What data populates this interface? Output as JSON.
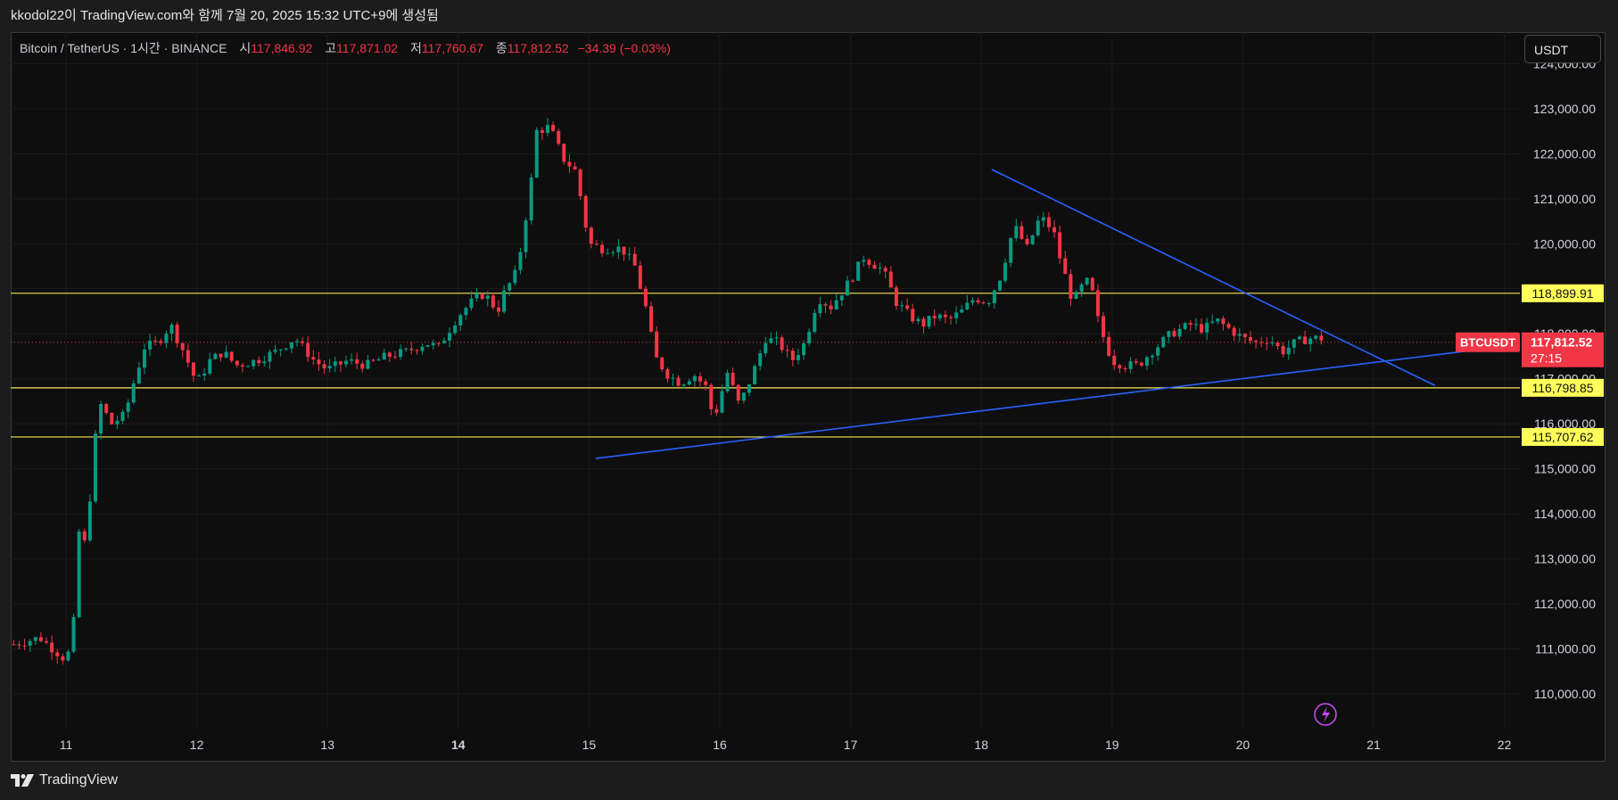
{
  "header": {
    "snapshot_text": "kkodol22이 TradingView.com와 함께 7월 20, 2025 15:32 UTC+9에 생성됨"
  },
  "symbol": {
    "name": "Bitcoin / TetherUS · 1시간 · BINANCE",
    "open_label": "시",
    "open_value": "117,846.92",
    "high_label": "고",
    "high_value": "117,871.02",
    "low_label": "저",
    "low_value": "117,760.67",
    "close_label": "종",
    "close_value": "117,812.52",
    "change": "−34.39 (−0.03%)"
  },
  "currency": "USDT",
  "footer": {
    "brand": "TradingView"
  },
  "colors": {
    "up": "#089981",
    "down": "#f23645",
    "trendline": "#2962ff",
    "level_line": "#f5e65a",
    "level_tag": "#ffff5a",
    "background": "#0e0e0e"
  },
  "icons": {
    "flash": "lightning-icon",
    "logo": "tradingview-logo-icon"
  },
  "chart_data": {
    "type": "candlestick",
    "x_ticks": [
      "11",
      "12",
      "13",
      "14",
      "15",
      "16",
      "17",
      "18",
      "19",
      "20",
      "21",
      "22"
    ],
    "y_ticks": [
      "110,000.00",
      "111,000.00",
      "112,000.00",
      "113,000.00",
      "114,000.00",
      "115,000.00",
      "116,000.00",
      "117,000.00",
      "118,000.00",
      "119,000.00",
      "120,000.00",
      "121,000.00",
      "122,000.00",
      "123,000.00",
      "124,000.00"
    ],
    "ylim": [
      109500,
      124300
    ],
    "xlim": [
      10.6,
      22.5
    ],
    "last_price": {
      "label": "BTCUSDT",
      "value": "117,812.52",
      "timer": "27:15",
      "price": 117812.52
    },
    "horizontal_levels": [
      {
        "price": 118899.91,
        "label": "118,899.91"
      },
      {
        "price": 116798.85,
        "label": "116,798.85"
      },
      {
        "price": 115707.62,
        "label": "115,707.62"
      }
    ],
    "trendlines": [
      {
        "name": "descending",
        "from": [
          18.08,
          121650
        ],
        "to": [
          21.47,
          116850
        ]
      },
      {
        "name": "ascending",
        "from": [
          15.05,
          115230
        ],
        "to": [
          22.0,
          117720
        ]
      }
    ],
    "price_path": [
      [
        10.6,
        111100
      ],
      [
        10.8,
        111250
      ],
      [
        11.0,
        110750
      ],
      [
        11.05,
        111200
      ],
      [
        11.1,
        113600
      ],
      [
        11.15,
        113300
      ],
      [
        11.25,
        116500
      ],
      [
        11.35,
        116000
      ],
      [
        11.45,
        116200
      ],
      [
        11.5,
        116750
      ],
      [
        11.6,
        117700
      ],
      [
        11.7,
        117800
      ],
      [
        11.8,
        118200
      ],
      [
        11.9,
        117600
      ],
      [
        12.0,
        116900
      ],
      [
        12.1,
        117400
      ],
      [
        12.2,
        117600
      ],
      [
        12.3,
        117300
      ],
      [
        12.45,
        117400
      ],
      [
        12.6,
        117600
      ],
      [
        12.75,
        117900
      ],
      [
        12.9,
        117400
      ],
      [
        13.0,
        117200
      ],
      [
        13.15,
        117400
      ],
      [
        13.3,
        117300
      ],
      [
        13.45,
        117500
      ],
      [
        13.6,
        117600
      ],
      [
        13.75,
        117800
      ],
      [
        13.85,
        117700
      ],
      [
        13.9,
        117950
      ],
      [
        14.0,
        118400
      ],
      [
        14.1,
        118700
      ],
      [
        14.2,
        118900
      ],
      [
        14.3,
        118500
      ],
      [
        14.35,
        118900
      ],
      [
        14.45,
        119400
      ],
      [
        14.55,
        121200
      ],
      [
        14.6,
        122500
      ],
      [
        14.7,
        122600
      ],
      [
        14.8,
        121900
      ],
      [
        14.9,
        121600
      ],
      [
        15.0,
        120000
      ],
      [
        15.1,
        119900
      ],
      [
        15.25,
        119900
      ],
      [
        15.35,
        119500
      ],
      [
        15.45,
        118400
      ],
      [
        15.5,
        117500
      ],
      [
        15.6,
        117100
      ],
      [
        15.7,
        116900
      ],
      [
        15.8,
        117100
      ],
      [
        15.9,
        116800
      ],
      [
        15.95,
        116100
      ],
      [
        16.0,
        116500
      ],
      [
        16.05,
        117200
      ],
      [
        16.15,
        116400
      ],
      [
        16.25,
        117100
      ],
      [
        16.35,
        117900
      ],
      [
        16.45,
        117800
      ],
      [
        16.55,
        117400
      ],
      [
        16.65,
        117800
      ],
      [
        16.75,
        118800
      ],
      [
        16.85,
        118600
      ],
      [
        17.0,
        119200
      ],
      [
        17.1,
        119700
      ],
      [
        17.25,
        119400
      ],
      [
        17.35,
        118700
      ],
      [
        17.45,
        118400
      ],
      [
        17.55,
        118200
      ],
      [
        17.65,
        118400
      ],
      [
        17.75,
        118300
      ],
      [
        17.85,
        118500
      ],
      [
        17.95,
        118800
      ],
      [
        18.05,
        118700
      ],
      [
        18.15,
        119300
      ],
      [
        18.25,
        120400
      ],
      [
        18.35,
        119900
      ],
      [
        18.45,
        120600
      ],
      [
        18.55,
        120300
      ],
      [
        18.6,
        119700
      ],
      [
        18.7,
        118700
      ],
      [
        18.8,
        119200
      ],
      [
        18.85,
        118900
      ],
      [
        18.9,
        118200
      ],
      [
        19.0,
        117400
      ],
      [
        19.1,
        117300
      ],
      [
        19.2,
        117300
      ],
      [
        19.3,
        117600
      ],
      [
        19.45,
        118000
      ],
      [
        19.6,
        118200
      ],
      [
        19.7,
        118100
      ],
      [
        19.8,
        118300
      ],
      [
        19.9,
        118100
      ],
      [
        20.0,
        117900
      ],
      [
        20.1,
        117800
      ],
      [
        20.2,
        117900
      ],
      [
        20.3,
        117600
      ],
      [
        20.4,
        117800
      ],
      [
        20.5,
        117900
      ],
      [
        20.6,
        117900
      ],
      [
        20.65,
        117812
      ]
    ]
  }
}
